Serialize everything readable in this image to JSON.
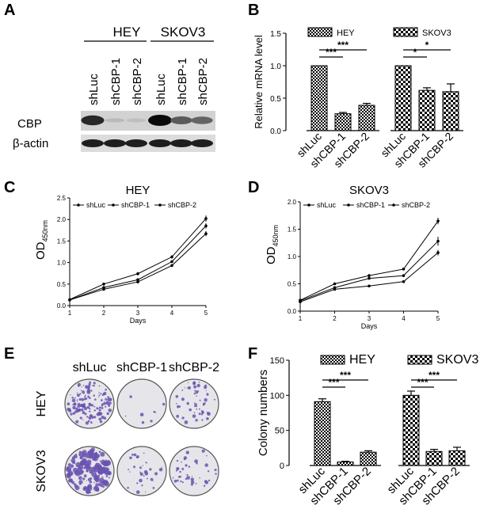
{
  "panels": {
    "A": {
      "letter": "A",
      "groups": [
        "HEY",
        "SKOV3"
      ],
      "lanes": [
        "shLuc",
        "shCBP-1",
        "shCBP-2",
        "shLuc",
        "shCBP-1",
        "shCBP-2"
      ],
      "rows": [
        "CBP",
        "β-actin"
      ],
      "cbp_band_intensity": [
        0.85,
        0.12,
        0.1,
        1.0,
        0.6,
        0.55
      ],
      "actin_band_intensity": [
        0.9,
        0.9,
        0.9,
        0.9,
        0.9,
        0.9
      ]
    },
    "B": {
      "letter": "B",
      "legend": [
        "HEY",
        "SKOV3"
      ],
      "ylabel": "Relative mRNA level",
      "yticks": [
        "0.0",
        "0.5",
        "1.0",
        "1.5"
      ],
      "categories": [
        "shLuc",
        "shCBP-1",
        "shCBP-2",
        "shLuc",
        "shCBP-1",
        "shCBP-2"
      ],
      "sig": [
        "***",
        "***",
        "*",
        "*"
      ]
    },
    "C": {
      "letter": "C",
      "title": "HEY",
      "ylabel_main": "OD",
      "ylabel_sub": "450nm",
      "xlabel": "Days",
      "legend": [
        "shLuc",
        "shCBP-1",
        "shCBP-2"
      ],
      "yticks": [
        "0.0",
        "0.5",
        "1.0",
        "1.5",
        "2.0",
        "2.5"
      ],
      "xticks": [
        "1",
        "2",
        "3",
        "4",
        "5"
      ]
    },
    "D": {
      "letter": "D",
      "title": "SKOV3",
      "ylabel_main": "OD",
      "ylabel_sub": "450nm",
      "xlabel": "Days",
      "legend": [
        "shLuc",
        "shCBP-1",
        "shCBP-2"
      ],
      "yticks": [
        "0.0",
        "0.5",
        "1.0",
        "1.5",
        "2.0"
      ],
      "xticks": [
        "1",
        "2",
        "3",
        "4",
        "5"
      ]
    },
    "E": {
      "letter": "E",
      "columns": [
        "shLuc",
        "shCBP-1",
        "shCBP-2"
      ],
      "rows": [
        "HEY",
        "SKOV3"
      ],
      "colony_density": [
        [
          0.9,
          0.05,
          0.35
        ],
        [
          1.0,
          0.2,
          0.25
        ]
      ]
    },
    "F": {
      "letter": "F",
      "legend": [
        "HEY",
        "SKOV3"
      ],
      "ylabel": "Colony numbers",
      "yticks": [
        "0",
        "50",
        "100",
        "150"
      ],
      "categories": [
        "shLuc",
        "shCBP-1",
        "shCBP-2",
        "shLuc",
        "shCBP-1",
        "shCBP-2"
      ],
      "sig": [
        "***",
        "***",
        "***",
        "***"
      ]
    }
  },
  "chart_data": [
    {
      "panel": "B",
      "type": "bar",
      "ylabel": "Relative mRNA level",
      "ylim": [
        0,
        1.5
      ],
      "legend": [
        "HEY",
        "SKOV3"
      ],
      "categories": [
        "shLuc",
        "shCBP-1",
        "shCBP-2"
      ],
      "series": [
        {
          "name": "HEY",
          "values": [
            1.0,
            0.26,
            0.39
          ],
          "errors": [
            0.0,
            0.02,
            0.03
          ]
        },
        {
          "name": "SKOV3",
          "values": [
            1.0,
            0.62,
            0.6
          ],
          "errors": [
            0.0,
            0.04,
            0.12
          ]
        }
      ]
    },
    {
      "panel": "C",
      "type": "line",
      "title": "HEY",
      "xlabel": "Days",
      "ylim": [
        0,
        2.5
      ],
      "xlim": [
        1,
        5
      ],
      "x": [
        1,
        2,
        3,
        4,
        5
      ],
      "series": [
        {
          "name": "shLuc",
          "values": [
            0.14,
            0.5,
            0.74,
            1.13,
            2.02
          ],
          "errors": [
            0.01,
            0.02,
            0.04,
            0.04,
            0.07
          ]
        },
        {
          "name": "shCBP-1",
          "values": [
            0.13,
            0.38,
            0.55,
            0.93,
            1.67
          ],
          "errors": [
            0.01,
            0.02,
            0.03,
            0.03,
            0.06
          ]
        },
        {
          "name": "shCBP-2",
          "values": [
            0.13,
            0.42,
            0.6,
            1.02,
            1.85
          ],
          "errors": [
            0.01,
            0.02,
            0.03,
            0.03,
            0.06
          ]
        }
      ]
    },
    {
      "panel": "D",
      "type": "line",
      "title": "SKOV3",
      "xlabel": "Days",
      "ylim": [
        0,
        2.0
      ],
      "xlim": [
        1,
        5
      ],
      "x": [
        1,
        2,
        3,
        4,
        5
      ],
      "series": [
        {
          "name": "shLuc",
          "values": [
            0.2,
            0.5,
            0.65,
            0.77,
            1.65
          ],
          "errors": [
            0.01,
            0.02,
            0.03,
            0.02,
            0.06
          ]
        },
        {
          "name": "shCBP-1",
          "values": [
            0.17,
            0.4,
            0.46,
            0.54,
            1.07
          ],
          "errors": [
            0.01,
            0.02,
            0.02,
            0.02,
            0.05
          ]
        },
        {
          "name": "shCBP-2",
          "values": [
            0.19,
            0.43,
            0.6,
            0.65,
            1.28
          ],
          "errors": [
            0.01,
            0.02,
            0.02,
            0.02,
            0.08
          ]
        }
      ]
    },
    {
      "panel": "F",
      "type": "bar",
      "ylabel": "Colony numbers",
      "ylim": [
        0,
        150
      ],
      "legend": [
        "HEY",
        "SKOV3"
      ],
      "categories": [
        "shLuc",
        "shCBP-1",
        "shCBP-2"
      ],
      "series": [
        {
          "name": "HEY",
          "values": [
            91,
            5,
            19
          ],
          "errors": [
            4,
            1,
            2
          ]
        },
        {
          "name": "SKOV3",
          "values": [
            100,
            20,
            21
          ],
          "errors": [
            6,
            3,
            5
          ]
        }
      ]
    }
  ]
}
